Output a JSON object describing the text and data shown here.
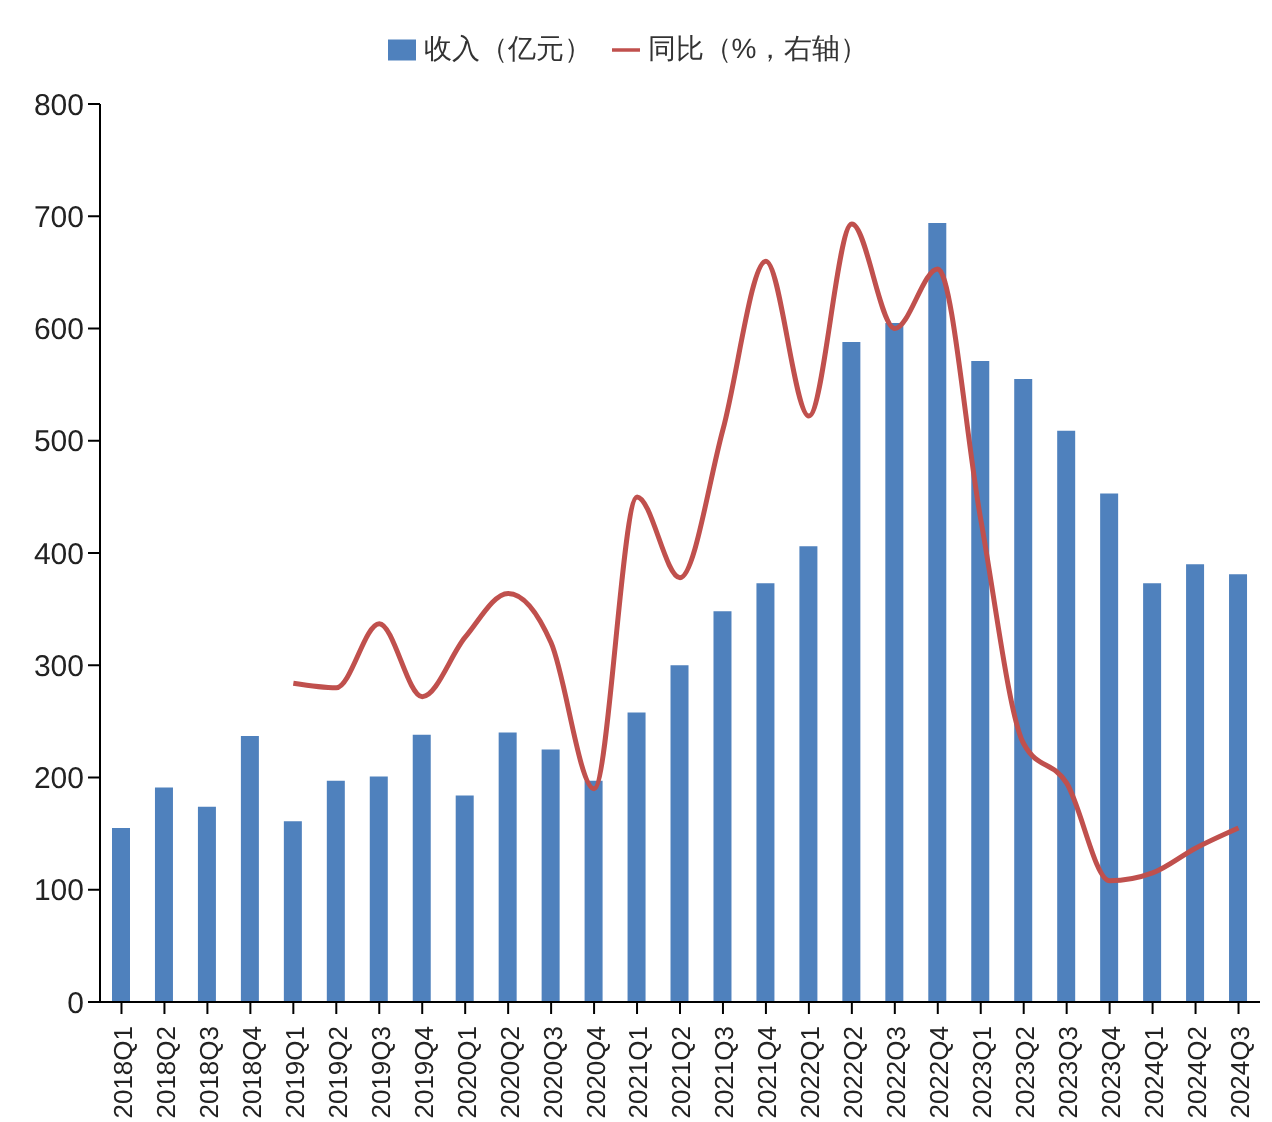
{
  "chart_data": {
    "type": "bar",
    "categories": [
      "2018Q1",
      "2018Q2",
      "2018Q3",
      "2018Q4",
      "2019Q1",
      "2019Q2",
      "2019Q3",
      "2019Q4",
      "2020Q1",
      "2020Q2",
      "2020Q3",
      "2020Q4",
      "2021Q1",
      "2021Q2",
      "2021Q3",
      "2021Q4",
      "2022Q1",
      "2022Q2",
      "2022Q3",
      "2022Q4",
      "2023Q1",
      "2023Q2",
      "2023Q3",
      "2023Q4",
      "2024Q1",
      "2024Q2",
      "2024Q3"
    ],
    "series": [
      {
        "name": "收入（亿元）",
        "color": "#4f81bd",
        "values": [
          155,
          191,
          174,
          237,
          161,
          197,
          201,
          238,
          184,
          240,
          225,
          197,
          258,
          300,
          348,
          373,
          406,
          588,
          605,
          694,
          571,
          555,
          509,
          453,
          373,
          390,
          381
        ]
      },
      {
        "name": "同比（%，右轴）",
        "type": "line",
        "color": "#c0504d",
        "values": [
          null,
          null,
          null,
          null,
          284,
          280,
          337,
          272,
          325,
          364,
          320,
          190,
          450,
          378,
          510,
          660,
          522,
          693,
          600,
          653,
          430,
          230,
          195,
          108,
          115,
          137,
          155
        ]
      }
    ],
    "ylim": [
      0,
      800
    ],
    "yticks": [
      0,
      100,
      200,
      300,
      400,
      500,
      600,
      700,
      800
    ],
    "grid": false,
    "legend": "top",
    "marker": "none",
    "line_style": "solid"
  }
}
